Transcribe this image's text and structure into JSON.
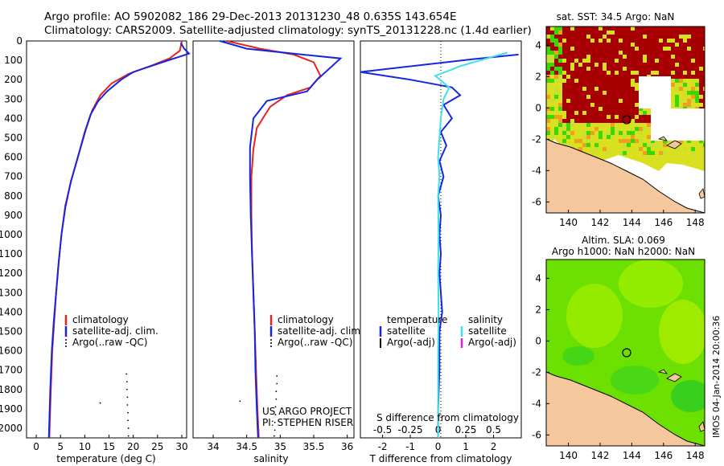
{
  "header": {
    "line1": "Argo profile: AO 5902082_186 29-Dec-2013 20131230_48 0.635S 143.654E",
    "line2": "Climatology: CARS2009. Satellite-adjusted climatology: synTS_20131228.nc (1.4d earlier)"
  },
  "colors": {
    "climatology": "#e8231e",
    "satellite": "#1626e0",
    "argo": "#000000",
    "satellite_diff": "#3fe0ec",
    "argo_adj_sal": "#e020e0",
    "land": "#f5c79d",
    "warm": "#a80000",
    "green": "#38d800"
  },
  "depth_axis": {
    "ticks": [
      "0",
      "100",
      "200",
      "300",
      "400",
      "500",
      "600",
      "700",
      "800",
      "900",
      "1000",
      "1100",
      "1200",
      "1300",
      "1400",
      "1500",
      "1600",
      "1700",
      "1800",
      "1900",
      "2000"
    ]
  },
  "chart_data": [
    {
      "type": "line",
      "id": "temperature",
      "xlabel": "temperature (deg C)",
      "ylim": [
        0,
        2050
      ],
      "xlim": [
        -2,
        31
      ],
      "xticks": [
        "0",
        "5",
        "10",
        "15",
        "20",
        "25",
        "30"
      ],
      "legend": {
        "items": [
          "climatology",
          "satellite-adj. clim.",
          "Argo(..raw -QC)"
        ]
      },
      "series": [
        {
          "name": "climatology",
          "color": "#e8231e",
          "points": [
            [
              30,
              0
            ],
            [
              29.6,
              50
            ],
            [
              27.5,
              90
            ],
            [
              24,
              125
            ],
            [
              19,
              170
            ],
            [
              15.5,
              220
            ],
            [
              13.2,
              280
            ],
            [
              11.5,
              360
            ],
            [
              10.2,
              460
            ],
            [
              8.8,
              580
            ],
            [
              7.2,
              720
            ],
            [
              6,
              850
            ],
            [
              5.2,
              1000
            ],
            [
              4.6,
              1150
            ],
            [
              4.1,
              1300
            ],
            [
              3.7,
              1450
            ],
            [
              3.3,
              1600
            ],
            [
              3,
              1800
            ],
            [
              2.7,
              2050
            ]
          ]
        },
        {
          "name": "satellite-adj. clim.",
          "color": "#1626e0",
          "points": [
            [
              29.8,
              10
            ],
            [
              30.5,
              40
            ],
            [
              31.5,
              65
            ],
            [
              26,
              110
            ],
            [
              20,
              160
            ],
            [
              17.5,
              200
            ],
            [
              14.6,
              260
            ],
            [
              12.8,
              310
            ],
            [
              11.2,
              380
            ],
            [
              10,
              470
            ],
            [
              8.7,
              590
            ],
            [
              7.1,
              730
            ],
            [
              6,
              860
            ],
            [
              5.2,
              1000
            ],
            [
              4.6,
              1150
            ],
            [
              4.1,
              1300
            ],
            [
              3.6,
              1450
            ],
            [
              3.2,
              1600
            ],
            [
              2.9,
              1800
            ],
            [
              2.6,
              2050
            ]
          ]
        }
      ],
      "argo_points": [
        [
          18.6,
          1720
        ],
        [
          18.7,
          1760
        ],
        [
          18.7,
          1800
        ],
        [
          18.8,
          1840
        ],
        [
          18.8,
          1880
        ],
        [
          18.9,
          1920
        ],
        [
          18.9,
          1960
        ],
        [
          19,
          2000
        ],
        [
          19,
          2040
        ],
        [
          13.2,
          1870
        ]
      ]
    },
    {
      "type": "line",
      "id": "salinity",
      "xlabel": "salinity",
      "ylim": [
        0,
        2050
      ],
      "xlim": [
        33.7,
        36.1
      ],
      "xticks": [
        "34",
        "34.5",
        "35",
        "35.5",
        "36"
      ],
      "legend": {
        "items": [
          "climatology",
          "satellite-adj. clim.",
          "Argo(..raw -QC)"
        ]
      },
      "series": [
        {
          "name": "climatology",
          "color": "#e8231e",
          "points": [
            [
              34.2,
              0
            ],
            [
              34.7,
              40
            ],
            [
              35.2,
              70
            ],
            [
              35.5,
              110
            ],
            [
              35.6,
              180
            ],
            [
              35.45,
              240
            ],
            [
              35.1,
              280
            ],
            [
              34.85,
              340
            ],
            [
              34.65,
              450
            ],
            [
              34.6,
              560
            ],
            [
              34.57,
              700
            ],
            [
              34.57,
              900
            ],
            [
              34.58,
              1100
            ],
            [
              34.6,
              1300
            ],
            [
              34.62,
              1500
            ],
            [
              34.64,
              1700
            ],
            [
              34.66,
              1900
            ],
            [
              34.68,
              2050
            ]
          ]
        },
        {
          "name": "satellite-adj. clim.",
          "color": "#1626e0",
          "points": [
            [
              34.1,
              0
            ],
            [
              34.5,
              40
            ],
            [
              35.2,
              65
            ],
            [
              35.9,
              90
            ],
            [
              35.55,
              200
            ],
            [
              35.4,
              260
            ],
            [
              34.8,
              310
            ],
            [
              34.6,
              400
            ],
            [
              34.55,
              550
            ],
            [
              34.55,
              700
            ],
            [
              34.56,
              900
            ],
            [
              34.58,
              1100
            ],
            [
              34.6,
              1300
            ],
            [
              34.62,
              1500
            ],
            [
              34.63,
              1700
            ],
            [
              34.65,
              1900
            ],
            [
              34.67,
              2050
            ]
          ]
        }
      ],
      "argo_points": [
        [
          34.95,
          1730
        ],
        [
          34.95,
          1770
        ],
        [
          34.94,
          1810
        ],
        [
          34.94,
          1850
        ],
        [
          34.93,
          1890
        ],
        [
          34.93,
          1930
        ],
        [
          34.92,
          1970
        ],
        [
          34.92,
          2010
        ],
        [
          34.91,
          2040
        ],
        [
          34.4,
          1860
        ]
      ],
      "credit": [
        "US ARGO PROJECT",
        "PI: STEPHEN RISER"
      ]
    },
    {
      "type": "line",
      "id": "difference",
      "ylim": [
        0,
        2050
      ],
      "xlim": [
        -2.8,
        3.0
      ],
      "xticks_top": [
        "-0.5",
        "-0.25",
        "0",
        "0.25",
        "0.5"
      ],
      "xticks_bottom": [
        "-2",
        "-1",
        "0",
        "1",
        "2"
      ],
      "top_label": "S difference from climatology",
      "xlabel": "T difference from climatology",
      "legend": {
        "temperature_title": "temperature",
        "salinity_title": "salinity",
        "temperature_items": [
          "satellite",
          "Argo(-adj)"
        ],
        "salinity_items": [
          "satellite",
          "Argo(-adj)"
        ]
      },
      "series": [
        {
          "name": "T satellite",
          "color": "#1626e0",
          "points": [
            [
              2.9,
              70
            ],
            [
              1.2,
              95
            ],
            [
              -2.8,
              160
            ],
            [
              -1,
              200
            ],
            [
              0.5,
              240
            ],
            [
              0.8,
              280
            ],
            [
              0.2,
              330
            ],
            [
              0.5,
              400
            ],
            [
              0.1,
              470
            ],
            [
              0.3,
              540
            ],
            [
              0.05,
              620
            ],
            [
              0.2,
              700
            ],
            [
              0,
              800
            ],
            [
              0.1,
              900
            ],
            [
              0.05,
              1000
            ],
            [
              0.1,
              1100
            ],
            [
              0.05,
              1200
            ],
            [
              0.1,
              1300
            ],
            [
              0.15,
              1400
            ],
            [
              0.05,
              1500
            ],
            [
              0.05,
              1700
            ],
            [
              0,
              1900
            ],
            [
              0,
              2050
            ]
          ]
        },
        {
          "name": "S satellite",
          "color": "#3fe0ec",
          "points": [
            [
              2.5,
              60
            ],
            [
              2.0,
              80
            ],
            [
              0.8,
              130
            ],
            [
              -0.1,
              180
            ],
            [
              0.4,
              240
            ],
            [
              0.2,
              300
            ],
            [
              0.1,
              400
            ],
            [
              0.05,
              500
            ],
            [
              0,
              600
            ],
            [
              0.05,
              700
            ],
            [
              0,
              800
            ],
            [
              0.02,
              1000
            ],
            [
              0,
              1200
            ],
            [
              0.02,
              1400
            ],
            [
              0,
              1600
            ],
            [
              0,
              1800
            ],
            [
              0,
              2050
            ]
          ]
        }
      ]
    }
  ],
  "maps": {
    "sst": {
      "title": "sat. SST: 34.5 Argo: NaN",
      "yticks": [
        "4",
        "2",
        "0",
        "-2",
        "-4",
        "-6"
      ],
      "xticks": [
        "140",
        "142",
        "144",
        "146",
        "148"
      ]
    },
    "sla": {
      "title_line1": "Altim. SLA: 0.069",
      "title_line2": "Argo h1000: NaN h2000: NaN",
      "yticks": [
        "4",
        "2",
        "0",
        "-2",
        "-4",
        "-6"
      ],
      "xticks": [
        "140",
        "142",
        "144",
        "146",
        "148"
      ]
    },
    "map_extent": {
      "lon": [
        138.6,
        148.6
      ],
      "lat": [
        -6.7,
        5.2
      ]
    },
    "argo_position": {
      "lon": 143.654,
      "lat": -0.635
    }
  },
  "watermark": "IMOS 04-Jan-2014 20:00:36"
}
